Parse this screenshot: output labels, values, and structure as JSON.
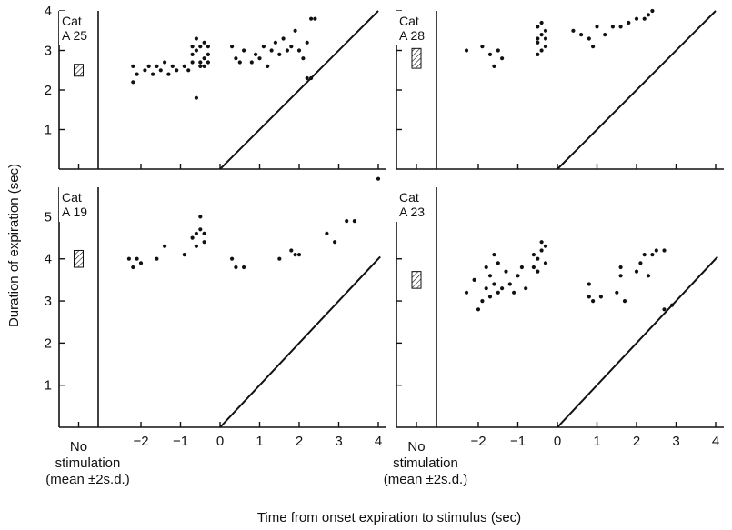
{
  "y_axis_label": "Duration of expiration (sec)",
  "x_axis_label": "Time from onset expiration to stimulus (sec)",
  "no_stim_label": [
    "No",
    "stimulation",
    "(mean ±2s.d.)"
  ],
  "chart_data": [
    {
      "type": "scatter",
      "panel": "top-left",
      "label": [
        "Cat",
        "A 25"
      ],
      "xlim": [
        -2.6,
        4.2
      ],
      "ylim": [
        0,
        4
      ],
      "xticks": [],
      "yticks": [
        1,
        2,
        3,
        4
      ],
      "control_mean": 2.5,
      "control_2sd": 0.15,
      "points": [
        [
          -2.2,
          2.2
        ],
        [
          -2.2,
          2.6
        ],
        [
          -2.1,
          2.4
        ],
        [
          -1.9,
          2.5
        ],
        [
          -1.8,
          2.6
        ],
        [
          -1.7,
          2.4
        ],
        [
          -1.6,
          2.6
        ],
        [
          -1.5,
          2.5
        ],
        [
          -1.4,
          2.7
        ],
        [
          -1.3,
          2.4
        ],
        [
          -1.2,
          2.6
        ],
        [
          -1.1,
          2.5
        ],
        [
          -0.9,
          2.6
        ],
        [
          -0.8,
          2.5
        ],
        [
          -0.7,
          2.7
        ],
        [
          -0.5,
          2.7
        ],
        [
          -0.5,
          2.6
        ],
        [
          -0.4,
          2.6
        ],
        [
          -0.3,
          2.7
        ],
        [
          -0.6,
          1.8
        ],
        [
          -0.7,
          2.9
        ],
        [
          -0.6,
          3.0
        ],
        [
          -0.5,
          3.1
        ],
        [
          -0.4,
          3.2
        ],
        [
          -0.3,
          3.1
        ],
        [
          -0.6,
          3.3
        ],
        [
          -0.4,
          2.8
        ],
        [
          -0.7,
          3.1
        ],
        [
          -0.3,
          2.9
        ],
        [
          0.3,
          3.1
        ],
        [
          0.4,
          2.8
        ],
        [
          0.5,
          2.7
        ],
        [
          0.6,
          3.0
        ],
        [
          0.8,
          2.7
        ],
        [
          0.9,
          2.9
        ],
        [
          1.0,
          2.8
        ],
        [
          1.1,
          3.1
        ],
        [
          1.2,
          2.6
        ],
        [
          1.3,
          3.0
        ],
        [
          1.4,
          3.2
        ],
        [
          1.5,
          2.9
        ],
        [
          1.6,
          3.3
        ],
        [
          1.7,
          3.0
        ],
        [
          1.8,
          3.1
        ],
        [
          1.9,
          3.5
        ],
        [
          2.0,
          3.0
        ],
        [
          2.1,
          2.8
        ],
        [
          2.2,
          3.2
        ],
        [
          2.3,
          3.8
        ],
        [
          2.4,
          3.8
        ],
        [
          2.2,
          2.3
        ],
        [
          2.3,
          2.3
        ]
      ]
    },
    {
      "type": "scatter",
      "panel": "top-right",
      "label": [
        "Cat",
        "A 28"
      ],
      "xlim": [
        -2.6,
        4.2
      ],
      "ylim": [
        0,
        4
      ],
      "xticks": [],
      "yticks": [],
      "control_mean": 2.8,
      "control_2sd": 0.25,
      "points": [
        [
          -2.3,
          3.0
        ],
        [
          -1.9,
          3.1
        ],
        [
          -1.7,
          2.9
        ],
        [
          -1.6,
          2.6
        ],
        [
          -1.5,
          3.0
        ],
        [
          -1.4,
          2.8
        ],
        [
          -0.5,
          2.9
        ],
        [
          -0.5,
          3.2
        ],
        [
          -0.4,
          3.4
        ],
        [
          -0.3,
          3.5
        ],
        [
          -0.4,
          3.7
        ],
        [
          -0.5,
          3.6
        ],
        [
          -0.3,
          3.1
        ],
        [
          -0.4,
          3.0
        ],
        [
          -0.5,
          3.3
        ],
        [
          -0.3,
          3.3
        ],
        [
          0.4,
          3.5
        ],
        [
          0.6,
          3.4
        ],
        [
          0.8,
          3.3
        ],
        [
          0.9,
          3.1
        ],
        [
          1.0,
          3.6
        ],
        [
          1.2,
          3.4
        ],
        [
          1.4,
          3.6
        ],
        [
          1.6,
          3.6
        ],
        [
          1.8,
          3.7
        ],
        [
          2.0,
          3.8
        ],
        [
          2.2,
          3.8
        ],
        [
          2.3,
          3.9
        ],
        [
          2.4,
          4.0
        ]
      ]
    },
    {
      "type": "scatter",
      "panel": "bottom-left",
      "label": [
        "Cat",
        "A 19"
      ],
      "xlim": [
        -2.6,
        4.2
      ],
      "ylim": [
        0,
        5.7
      ],
      "xticks": [
        -2,
        -1,
        0,
        1,
        2,
        3,
        4
      ],
      "yticks": [
        1,
        2,
        3,
        4,
        5
      ],
      "control_mean": 4.0,
      "control_2sd": 0.2,
      "points": [
        [
          -2.3,
          4.0
        ],
        [
          -2.2,
          3.8
        ],
        [
          -2.1,
          4.0
        ],
        [
          -2.0,
          3.9
        ],
        [
          -1.6,
          4.0
        ],
        [
          -1.4,
          4.3
        ],
        [
          -0.9,
          4.1
        ],
        [
          -0.7,
          4.5
        ],
        [
          -0.6,
          4.6
        ],
        [
          -0.5,
          4.7
        ],
        [
          -0.5,
          5.0
        ],
        [
          -0.4,
          4.4
        ],
        [
          -0.6,
          4.3
        ],
        [
          -0.4,
          4.6
        ],
        [
          0.3,
          4.0
        ],
        [
          0.4,
          3.8
        ],
        [
          0.6,
          3.8
        ],
        [
          1.5,
          4.0
        ],
        [
          1.8,
          4.2
        ],
        [
          1.9,
          4.1
        ],
        [
          2.0,
          4.1
        ],
        [
          2.7,
          4.6
        ],
        [
          2.9,
          4.4
        ],
        [
          3.2,
          4.9
        ],
        [
          3.4,
          4.9
        ],
        [
          4.0,
          5.9
        ]
      ]
    },
    {
      "type": "scatter",
      "panel": "bottom-right",
      "label": [
        "Cat",
        "A 23"
      ],
      "xlim": [
        -2.6,
        4.2
      ],
      "ylim": [
        0,
        5.7
      ],
      "xticks": [
        -2,
        -1,
        0,
        1,
        2,
        3,
        4
      ],
      "yticks": [],
      "control_mean": 3.5,
      "control_2sd": 0.2,
      "points": [
        [
          -2.3,
          3.2
        ],
        [
          -2.1,
          3.5
        ],
        [
          -2.0,
          2.8
        ],
        [
          -1.9,
          3.0
        ],
        [
          -1.8,
          3.3
        ],
        [
          -1.7,
          3.6
        ],
        [
          -1.7,
          3.1
        ],
        [
          -1.6,
          3.4
        ],
        [
          -1.5,
          3.2
        ],
        [
          -1.5,
          3.9
        ],
        [
          -1.4,
          3.3
        ],
        [
          -1.3,
          3.7
        ],
        [
          -1.8,
          3.8
        ],
        [
          -1.6,
          4.1
        ],
        [
          -1.1,
          3.2
        ],
        [
          -1.0,
          3.6
        ],
        [
          -0.9,
          3.8
        ],
        [
          -0.8,
          3.3
        ],
        [
          -1.2,
          3.4
        ],
        [
          -0.6,
          3.8
        ],
        [
          -0.5,
          4.0
        ],
        [
          -0.4,
          4.2
        ],
        [
          -0.3,
          4.3
        ],
        [
          -0.5,
          3.7
        ],
        [
          -0.4,
          4.4
        ],
        [
          -0.6,
          4.1
        ],
        [
          -0.3,
          3.9
        ],
        [
          0.8,
          3.4
        ],
        [
          0.8,
          3.1
        ],
        [
          0.9,
          3.0
        ],
        [
          1.1,
          3.1
        ],
        [
          1.5,
          3.2
        ],
        [
          1.6,
          3.8
        ],
        [
          1.7,
          3.0
        ],
        [
          1.6,
          3.6
        ],
        [
          2.0,
          3.7
        ],
        [
          2.1,
          3.9
        ],
        [
          2.2,
          4.1
        ],
        [
          2.3,
          3.6
        ],
        [
          2.4,
          4.1
        ],
        [
          2.5,
          4.2
        ],
        [
          2.7,
          4.2
        ],
        [
          2.7,
          2.8
        ],
        [
          2.9,
          2.9
        ]
      ]
    }
  ]
}
